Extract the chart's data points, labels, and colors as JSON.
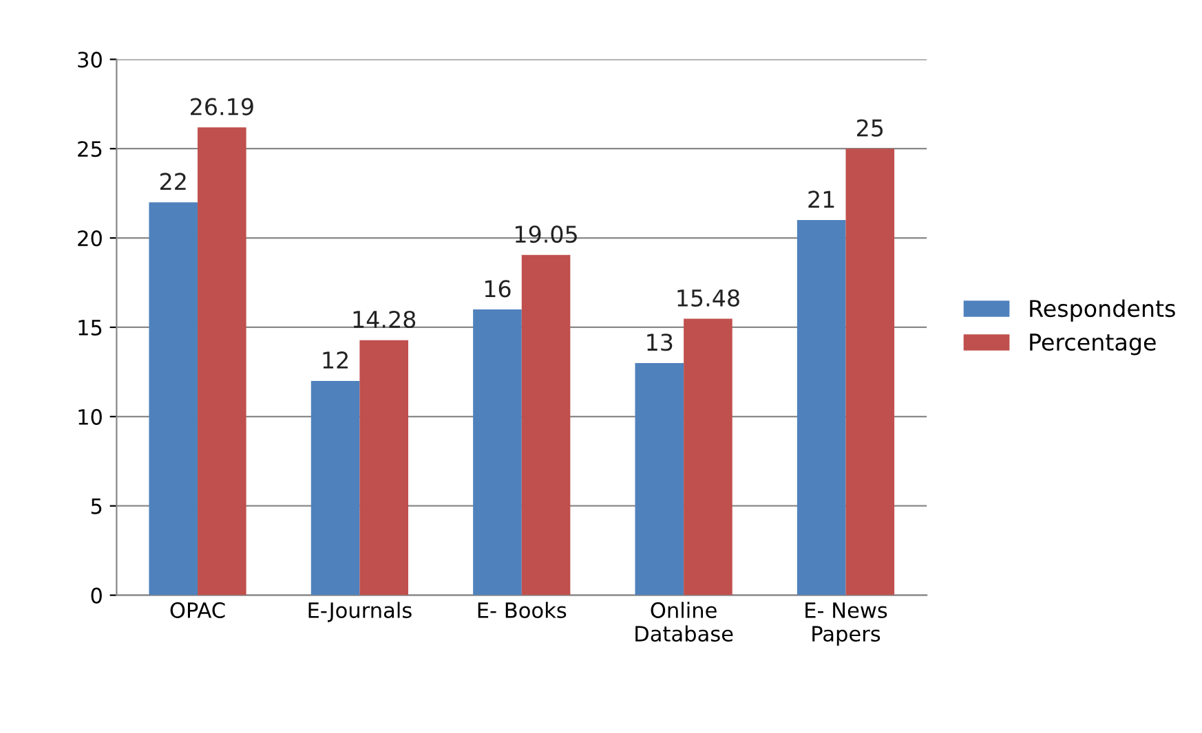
{
  "chart_data": {
    "type": "bar",
    "categories": [
      "OPAC",
      "E-Journals",
      "E- Books",
      "Online\nDatabase",
      "E- News\nPapers"
    ],
    "series": [
      {
        "name": "Respondents",
        "color": "#4f81bd",
        "values": [
          22,
          12,
          16,
          13,
          21
        ]
      },
      {
        "name": "Percentage",
        "color": "#c0504d",
        "values": [
          26.19,
          14.28,
          19.05,
          15.48,
          25
        ]
      }
    ],
    "ylim": [
      0,
      30
    ],
    "yticks": [
      0,
      5,
      10,
      15,
      20,
      25,
      30
    ],
    "grid": "y",
    "legend": "right",
    "data_labels": true
  }
}
